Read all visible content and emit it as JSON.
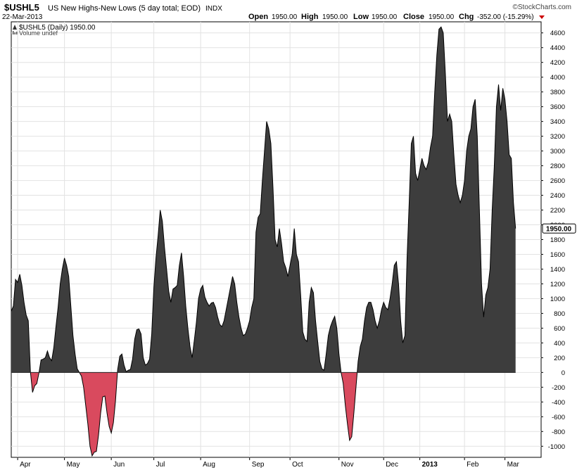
{
  "header": {
    "symbol": "$USHL5",
    "description": "US New Highs-New Lows (5 day total; EOD)",
    "exchange": "INDX",
    "watermark": "©StockCharts.com",
    "date": "22-Mar-2013",
    "quote": {
      "open_label": "Open",
      "open": "1950.00",
      "high_label": "High",
      "high": "1950.00",
      "low_label": "Low",
      "low": "1950.00",
      "close_label": "Close",
      "close": "1950.00",
      "chg_label": "Chg",
      "chg": "-352.00 (-15.29%)"
    },
    "legend_series": "$USHL5 (Daily) 1950.00",
    "legend_volume": "Volume undef"
  },
  "colors": {
    "positive_fill": "#3d3d3d",
    "negative_fill": "#d94a5e",
    "grid": "#e2e2e2",
    "frame": "#000000",
    "chg_arrow": "#cc0000"
  },
  "chart_data": {
    "type": "area",
    "title": "$USHL5 US New Highs-New Lows (5 day total; EOD)",
    "ylim": [
      -1150,
      4750
    ],
    "yticks": [
      -1000,
      -800,
      -600,
      -400,
      -200,
      0,
      200,
      400,
      600,
      800,
      1000,
      1200,
      1400,
      1600,
      1800,
      2000,
      2200,
      2400,
      2600,
      2800,
      3000,
      3200,
      3400,
      3600,
      3800,
      4000,
      4200,
      4400,
      4600
    ],
    "last_value": "1950.00",
    "grid": true,
    "months": [
      {
        "label": "Apr",
        "x": 3
      },
      {
        "label": "May",
        "x": 25
      },
      {
        "label": "Jun",
        "x": 47
      },
      {
        "label": "Jul",
        "x": 67
      },
      {
        "label": "Aug",
        "x": 89
      },
      {
        "label": "Sep",
        "x": 112
      },
      {
        "label": "Oct",
        "x": 131
      },
      {
        "label": "Nov",
        "x": 154
      },
      {
        "label": "Dec",
        "x": 175
      },
      {
        "label": "2013",
        "x": 192,
        "bold": true
      },
      {
        "label": "Feb",
        "x": 213
      },
      {
        "label": "Mar",
        "x": 232
      }
    ],
    "x_range": [
      0,
      249
    ],
    "values": [
      [
        0,
        830
      ],
      [
        1,
        900
      ],
      [
        2,
        1260
      ],
      [
        3,
        1220
      ],
      [
        4,
        1330
      ],
      [
        5,
        1180
      ],
      [
        6,
        950
      ],
      [
        7,
        780
      ],
      [
        8,
        700
      ],
      [
        9,
        10
      ],
      [
        10,
        -270
      ],
      [
        11,
        -180
      ],
      [
        12,
        -150
      ],
      [
        13,
        -10
      ],
      [
        14,
        170
      ],
      [
        15,
        180
      ],
      [
        16,
        200
      ],
      [
        17,
        290
      ],
      [
        18,
        200
      ],
      [
        19,
        160
      ],
      [
        20,
        340
      ],
      [
        21,
        620
      ],
      [
        22,
        880
      ],
      [
        23,
        1200
      ],
      [
        24,
        1400
      ],
      [
        25,
        1550
      ],
      [
        26,
        1450
      ],
      [
        27,
        1300
      ],
      [
        28,
        900
      ],
      [
        29,
        500
      ],
      [
        30,
        250
      ],
      [
        31,
        50
      ],
      [
        32,
        0
      ],
      [
        33,
        -50
      ],
      [
        34,
        -200
      ],
      [
        35,
        -450
      ],
      [
        36,
        -700
      ],
      [
        37,
        -1000
      ],
      [
        38,
        -1130
      ],
      [
        39,
        -1080
      ],
      [
        40,
        -1070
      ],
      [
        41,
        -850
      ],
      [
        42,
        -550
      ],
      [
        43,
        -330
      ],
      [
        44,
        -320
      ],
      [
        45,
        -550
      ],
      [
        46,
        -730
      ],
      [
        47,
        -820
      ],
      [
        48,
        -680
      ],
      [
        49,
        -380
      ],
      [
        50,
        40
      ],
      [
        51,
        220
      ],
      [
        52,
        250
      ],
      [
        53,
        100
      ],
      [
        54,
        10
      ],
      [
        55,
        30
      ],
      [
        56,
        40
      ],
      [
        57,
        180
      ],
      [
        58,
        450
      ],
      [
        59,
        580
      ],
      [
        60,
        590
      ],
      [
        61,
        520
      ],
      [
        62,
        200
      ],
      [
        63,
        100
      ],
      [
        64,
        120
      ],
      [
        65,
        180
      ],
      [
        66,
        520
      ],
      [
        67,
        1150
      ],
      [
        68,
        1550
      ],
      [
        69,
        1850
      ],
      [
        70,
        2200
      ],
      [
        71,
        2050
      ],
      [
        72,
        1700
      ],
      [
        73,
        1400
      ],
      [
        74,
        1100
      ],
      [
        75,
        950
      ],
      [
        76,
        1130
      ],
      [
        77,
        1150
      ],
      [
        78,
        1180
      ],
      [
        79,
        1450
      ],
      [
        80,
        1620
      ],
      [
        81,
        1300
      ],
      [
        82,
        900
      ],
      [
        83,
        600
      ],
      [
        84,
        350
      ],
      [
        85,
        200
      ],
      [
        86,
        430
      ],
      [
        87,
        680
      ],
      [
        88,
        1000
      ],
      [
        89,
        1130
      ],
      [
        90,
        1180
      ],
      [
        91,
        1020
      ],
      [
        92,
        950
      ],
      [
        93,
        900
      ],
      [
        94,
        940
      ],
      [
        95,
        950
      ],
      [
        96,
        880
      ],
      [
        97,
        750
      ],
      [
        98,
        650
      ],
      [
        99,
        620
      ],
      [
        100,
        700
      ],
      [
        101,
        850
      ],
      [
        102,
        1000
      ],
      [
        103,
        1150
      ],
      [
        104,
        1300
      ],
      [
        105,
        1200
      ],
      [
        106,
        950
      ],
      [
        107,
        750
      ],
      [
        108,
        600
      ],
      [
        109,
        500
      ],
      [
        110,
        520
      ],
      [
        111,
        600
      ],
      [
        112,
        700
      ],
      [
        113,
        880
      ],
      [
        114,
        1000
      ],
      [
        115,
        1900
      ],
      [
        116,
        2100
      ],
      [
        117,
        2150
      ],
      [
        118,
        2600
      ],
      [
        119,
        3000
      ],
      [
        120,
        3400
      ],
      [
        121,
        3300
      ],
      [
        122,
        3100
      ],
      [
        123,
        2500
      ],
      [
        124,
        1800
      ],
      [
        125,
        1700
      ],
      [
        126,
        1950
      ],
      [
        127,
        1750
      ],
      [
        128,
        1500
      ],
      [
        129,
        1420
      ],
      [
        130,
        1300
      ],
      [
        131,
        1450
      ],
      [
        132,
        1600
      ],
      [
        133,
        1950
      ],
      [
        134,
        1600
      ],
      [
        135,
        1500
      ],
      [
        136,
        1050
      ],
      [
        137,
        550
      ],
      [
        138,
        450
      ],
      [
        139,
        420
      ],
      [
        140,
        950
      ],
      [
        141,
        1150
      ],
      [
        142,
        1080
      ],
      [
        143,
        700
      ],
      [
        144,
        420
      ],
      [
        145,
        150
      ],
      [
        146,
        50
      ],
      [
        147,
        30
      ],
      [
        148,
        250
      ],
      [
        149,
        500
      ],
      [
        150,
        620
      ],
      [
        151,
        700
      ],
      [
        152,
        760
      ],
      [
        153,
        600
      ],
      [
        154,
        250
      ],
      [
        155,
        0
      ],
      [
        156,
        -150
      ],
      [
        157,
        -450
      ],
      [
        158,
        -700
      ],
      [
        159,
        -920
      ],
      [
        160,
        -870
      ],
      [
        161,
        -550
      ],
      [
        162,
        -200
      ],
      [
        163,
        150
      ],
      [
        164,
        350
      ],
      [
        165,
        450
      ],
      [
        166,
        700
      ],
      [
        167,
        880
      ],
      [
        168,
        950
      ],
      [
        169,
        950
      ],
      [
        170,
        850
      ],
      [
        171,
        700
      ],
      [
        172,
        600
      ],
      [
        173,
        700
      ],
      [
        174,
        850
      ],
      [
        175,
        950
      ],
      [
        176,
        880
      ],
      [
        177,
        850
      ],
      [
        178,
        1000
      ],
      [
        179,
        1200
      ],
      [
        180,
        1450
      ],
      [
        181,
        1500
      ],
      [
        182,
        1200
      ],
      [
        183,
        700
      ],
      [
        184,
        400
      ],
      [
        185,
        500
      ],
      [
        186,
        1550
      ],
      [
        187,
        2300
      ],
      [
        188,
        3100
      ],
      [
        189,
        3200
      ],
      [
        190,
        2700
      ],
      [
        191,
        2600
      ],
      [
        192,
        2750
      ],
      [
        193,
        2900
      ],
      [
        194,
        2800
      ],
      [
        195,
        2750
      ],
      [
        196,
        2850
      ],
      [
        197,
        3050
      ],
      [
        198,
        3200
      ],
      [
        199,
        3800
      ],
      [
        200,
        4300
      ],
      [
        201,
        4650
      ],
      [
        202,
        4680
      ],
      [
        203,
        4600
      ],
      [
        204,
        4050
      ],
      [
        205,
        3400
      ],
      [
        206,
        3500
      ],
      [
        207,
        3400
      ],
      [
        208,
        2950
      ],
      [
        209,
        2550
      ],
      [
        210,
        2400
      ],
      [
        211,
        2300
      ],
      [
        212,
        2400
      ],
      [
        213,
        2600
      ],
      [
        214,
        3000
      ],
      [
        215,
        3200
      ],
      [
        216,
        3300
      ],
      [
        217,
        3600
      ],
      [
        218,
        3700
      ],
      [
        219,
        3200
      ],
      [
        220,
        2200
      ],
      [
        221,
        1200
      ],
      [
        222,
        750
      ],
      [
        223,
        1050
      ],
      [
        224,
        1150
      ],
      [
        225,
        1400
      ],
      [
        226,
        2200
      ],
      [
        227,
        2800
      ],
      [
        228,
        3600
      ],
      [
        229,
        3900
      ],
      [
        230,
        3550
      ],
      [
        231,
        3850
      ],
      [
        232,
        3700
      ],
      [
        233,
        3400
      ],
      [
        234,
        2950
      ],
      [
        235,
        2900
      ],
      [
        236,
        2300
      ],
      [
        237,
        1950
      ]
    ]
  }
}
